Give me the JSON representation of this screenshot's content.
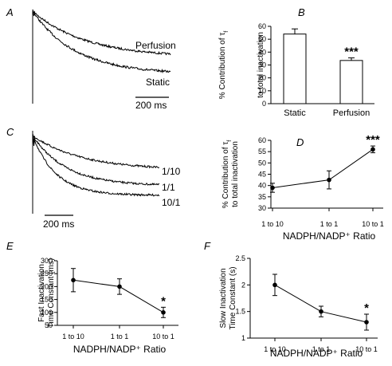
{
  "panels": {
    "A": {
      "letter": "A",
      "labels": [
        "Perfusion",
        "Static"
      ],
      "scalebar": "200 ms"
    },
    "C": {
      "letter": "C",
      "labels": [
        "1/10",
        "1/1",
        "10/1"
      ],
      "scalebar": "200 ms"
    }
  },
  "chart_data": [
    {
      "id": "B",
      "letter": "B",
      "type": "bar",
      "categories": [
        "Static",
        "Perfusion"
      ],
      "values": [
        54,
        33.5
      ],
      "errors": [
        4,
        2
      ],
      "annotations": [
        "",
        "***"
      ],
      "ylabel_line1": "% Contribution of τ",
      "ylabel_sub": "f",
      "ylabel_line2": "to total inactivation",
      "ylim": [
        0,
        60
      ],
      "yticks": [
        "0",
        "10",
        "20",
        "30",
        "40",
        "50",
        "60"
      ]
    },
    {
      "id": "D",
      "letter": "D",
      "type": "line",
      "categories": [
        "1 to 10",
        "1 to 1",
        "10 to 1"
      ],
      "values": [
        39,
        42.5,
        56
      ],
      "errors": [
        2,
        4,
        1.5
      ],
      "annotations": [
        "",
        "",
        "***"
      ],
      "ylabel_line1": "% Contribution of τ",
      "ylabel_sub": "f",
      "ylabel_line2": "to total inactivation",
      "xlabel": "NADPH/NADP⁺ Ratio",
      "ylim": [
        30,
        60
      ],
      "yticks": [
        "30",
        "35",
        "40",
        "45",
        "50",
        "55",
        "60"
      ]
    },
    {
      "id": "E",
      "letter": "E",
      "type": "line",
      "categories": [
        "1 to 10",
        "1 to 1",
        "10 to 1"
      ],
      "values": [
        225,
        200,
        100
      ],
      "errors": [
        45,
        30,
        20
      ],
      "annotations": [
        "",
        "",
        "*"
      ],
      "ylabel_line1": "Fast Inactivation",
      "ylabel_line2": "Time Constant (ms)",
      "xlabel": "NADPH/NADP⁺ Ratio",
      "ylim": [
        50,
        300
      ],
      "yticks": [
        "50",
        "100",
        "150",
        "200",
        "250",
        "300"
      ]
    },
    {
      "id": "F",
      "letter": "F",
      "type": "line",
      "categories": [
        "1 to 10",
        "1 to 1",
        "10 to 1"
      ],
      "values": [
        2.0,
        1.5,
        1.3
      ],
      "errors": [
        0.2,
        0.1,
        0.15
      ],
      "annotations": [
        "",
        "",
        "*"
      ],
      "ylabel_line1": "Slow Inactivation",
      "ylabel_line2": "Time Constant (s)",
      "xlabel": "NADPH/NADP⁺ Ratio",
      "ylim": [
        1,
        2.5
      ],
      "yticks": [
        "1",
        "1.5",
        "2",
        "2.5"
      ]
    }
  ]
}
